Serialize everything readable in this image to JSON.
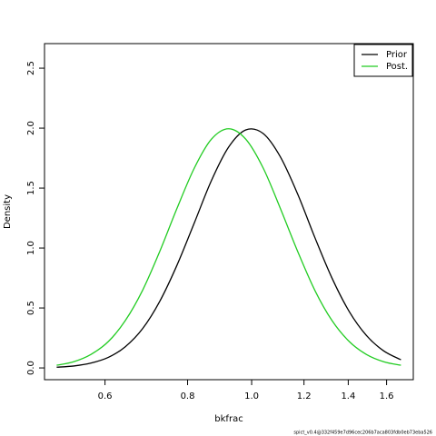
{
  "chart_data": {
    "type": "line",
    "x_label": "bkfrac",
    "y_label": "Density",
    "log_x": true,
    "x": [
      0.507,
      0.538,
      0.571,
      0.607,
      0.644,
      0.684,
      0.726,
      0.771,
      0.819,
      0.869,
      0.923,
      0.98,
      1.041,
      1.105,
      1.174,
      1.246,
      1.323,
      1.405,
      1.492,
      1.584,
      1.682
    ],
    "series": [
      {
        "name": "Prior",
        "color": "#000000",
        "values": [
          0.006,
          0.016,
          0.04,
          0.088,
          0.177,
          0.328,
          0.555,
          0.857,
          1.21,
          1.561,
          1.842,
          1.985,
          1.955,
          1.761,
          1.449,
          1.089,
          0.749,
          0.47,
          0.27,
          0.142,
          0.068
        ]
      },
      {
        "name": "Post.",
        "color": "#22cc22",
        "values": [
          0.022,
          0.052,
          0.112,
          0.22,
          0.395,
          0.648,
          0.971,
          1.331,
          1.667,
          1.907,
          1.995,
          1.907,
          1.667,
          1.331,
          0.971,
          0.648,
          0.395,
          0.22,
          0.112,
          0.052,
          0.022
        ]
      }
    ],
    "xlim": [
      0.486,
      1.756
    ],
    "ylim": [
      -0.098,
      2.705
    ],
    "xticks": [
      0.6,
      0.8,
      {
        "value": 1.0,
        "label": "1.0"
      },
      1.2,
      1.4,
      1.6
    ],
    "yticks": [
      {
        "value": 0,
        "label": "0.0"
      },
      0.5,
      {
        "value": 1.0,
        "label": "1.0"
      },
      1.5,
      {
        "value": 2.0,
        "label": "2.0"
      },
      2.5
    ],
    "legend": "top-right",
    "footnote": "spict_v0.4@332f459e7d96cec206b7aca803fdb0eb73eba526"
  }
}
